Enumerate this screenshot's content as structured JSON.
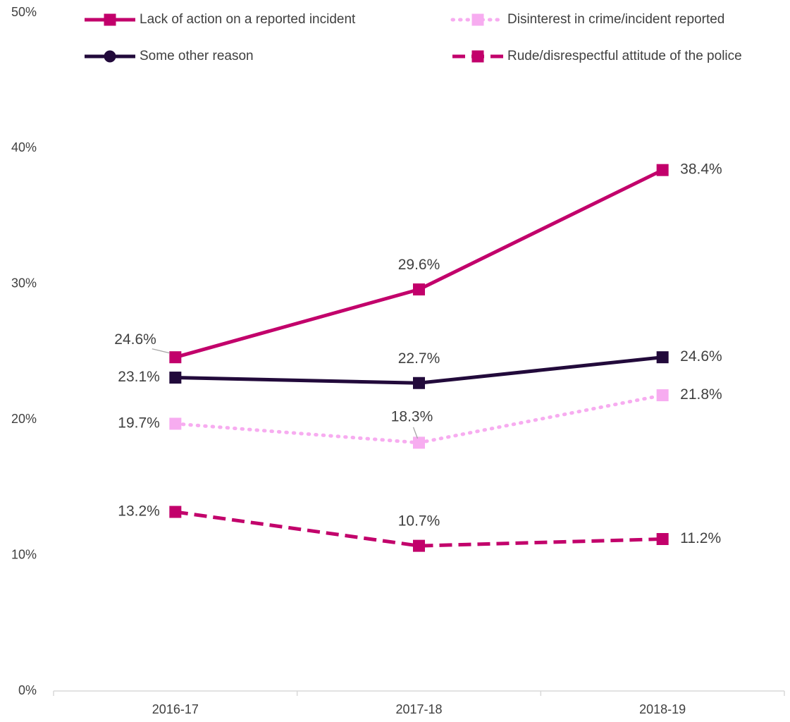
{
  "chart_data": {
    "type": "line",
    "categories": [
      "2016-17",
      "2017-18",
      "2018-19"
    ],
    "y_ticks": [
      "0%",
      "10%",
      "20%",
      "30%",
      "40%",
      "50%"
    ],
    "ylim": [
      0,
      50
    ],
    "y_unit": "%",
    "grid": false,
    "legend_position": "top",
    "series": [
      {
        "name": "Lack of action on a reported incident",
        "values": [
          24.6,
          29.6,
          38.4
        ],
        "labels": [
          "24.6%",
          "29.6%",
          "38.4%"
        ],
        "color": "#C2006B",
        "line_style": "solid",
        "marker": "square"
      },
      {
        "name": "Disinterest in crime/incident reported",
        "values": [
          19.7,
          18.3,
          21.8
        ],
        "labels": [
          "19.7%",
          "18.3%",
          "21.8%"
        ],
        "color": "#F7ACF0",
        "line_style": "dotted",
        "marker": "square"
      },
      {
        "name": "Some other reason",
        "values": [
          23.1,
          22.7,
          24.6
        ],
        "labels": [
          "23.1%",
          "22.7%",
          "24.6%"
        ],
        "color": "#220A3B",
        "line_style": "solid",
        "marker": "square"
      },
      {
        "name": "Rude/disrespectful attitude of the police",
        "values": [
          13.2,
          10.7,
          11.2
        ],
        "labels": [
          "13.2%",
          "10.7%",
          "11.2%"
        ],
        "color": "#C2006B",
        "line_style": "dashed",
        "marker": "square"
      }
    ]
  }
}
